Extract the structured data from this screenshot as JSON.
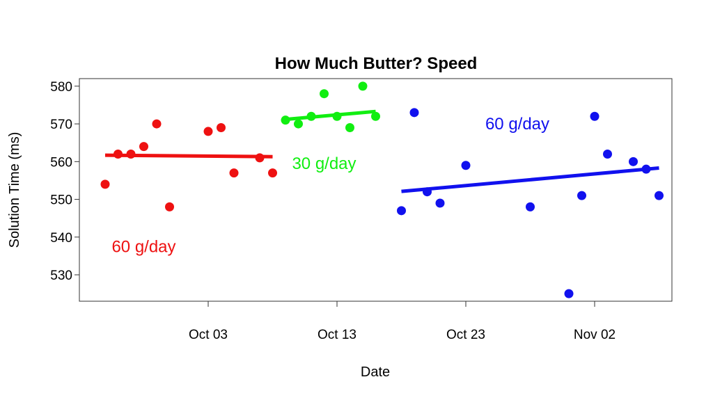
{
  "chart_data": {
    "type": "scatter",
    "title": "How Much Butter? Speed",
    "xlabel": "Date",
    "ylabel": "Solution Time (ms)",
    "xlim": [
      "2013-09-23",
      "2013-11-08"
    ],
    "ylim": [
      523,
      582
    ],
    "x_ticks": [
      {
        "date": "2013-10-03",
        "label": "Oct 03"
      },
      {
        "date": "2013-10-13",
        "label": "Oct 13"
      },
      {
        "date": "2013-10-23",
        "label": "Oct 23"
      },
      {
        "date": "2013-11-02",
        "label": "Nov 02"
      }
    ],
    "y_ticks": [
      530,
      540,
      550,
      560,
      570,
      580
    ],
    "grid": false,
    "series": [
      {
        "color": "#ee1111",
        "points": [
          {
            "x": "2013-09-25",
            "y": 554
          },
          {
            "x": "2013-09-26",
            "y": 562
          },
          {
            "x": "2013-09-27",
            "y": 562
          },
          {
            "x": "2013-09-28",
            "y": 564
          },
          {
            "x": "2013-09-29",
            "y": 570
          },
          {
            "x": "2013-09-30",
            "y": 548
          },
          {
            "x": "2013-10-03",
            "y": 568
          },
          {
            "x": "2013-10-04",
            "y": 569
          },
          {
            "x": "2013-10-05",
            "y": 557
          },
          {
            "x": "2013-10-07",
            "y": 561
          },
          {
            "x": "2013-10-08",
            "y": 557
          }
        ],
        "trend": [
          {
            "x": "2013-09-25",
            "y": 561.7
          },
          {
            "x": "2013-10-08",
            "y": 561.3
          }
        ]
      },
      {
        "color": "#11ee11",
        "points": [
          {
            "x": "2013-10-09",
            "y": 571
          },
          {
            "x": "2013-10-10",
            "y": 570
          },
          {
            "x": "2013-10-11",
            "y": 572
          },
          {
            "x": "2013-10-12",
            "y": 578
          },
          {
            "x": "2013-10-13",
            "y": 572
          },
          {
            "x": "2013-10-14",
            "y": 569
          },
          {
            "x": "2013-10-15",
            "y": 580
          },
          {
            "x": "2013-10-16",
            "y": 572
          }
        ],
        "trend": [
          {
            "x": "2013-10-09",
            "y": 571.2
          },
          {
            "x": "2013-10-16",
            "y": 573.3
          }
        ]
      },
      {
        "color": "#1111ee",
        "points": [
          {
            "x": "2013-10-18",
            "y": 547
          },
          {
            "x": "2013-10-19",
            "y": 573
          },
          {
            "x": "2013-10-20",
            "y": 552
          },
          {
            "x": "2013-10-21",
            "y": 549
          },
          {
            "x": "2013-10-23",
            "y": 559
          },
          {
            "x": "2013-10-28",
            "y": 548
          },
          {
            "x": "2013-10-31",
            "y": 525
          },
          {
            "x": "2013-11-01",
            "y": 551
          },
          {
            "x": "2013-11-02",
            "y": 572
          },
          {
            "x": "2013-11-03",
            "y": 562
          },
          {
            "x": "2013-11-05",
            "y": 560
          },
          {
            "x": "2013-11-06",
            "y": 558
          },
          {
            "x": "2013-11-07",
            "y": 551
          }
        ],
        "trend": [
          {
            "x": "2013-10-18",
            "y": 552.1
          },
          {
            "x": "2013-11-07",
            "y": 558.3
          }
        ]
      }
    ],
    "annotations": [
      {
        "text": "60 g/day",
        "color": "#ee1111",
        "x": "2013-09-28",
        "y": 536
      },
      {
        "text": "30 g/day",
        "color": "#11ee11",
        "x": "2013-10-12",
        "y": 558
      },
      {
        "text": "60 g/day",
        "color": "#1111ee",
        "x": "2013-10-27",
        "y": 568.5
      }
    ]
  }
}
